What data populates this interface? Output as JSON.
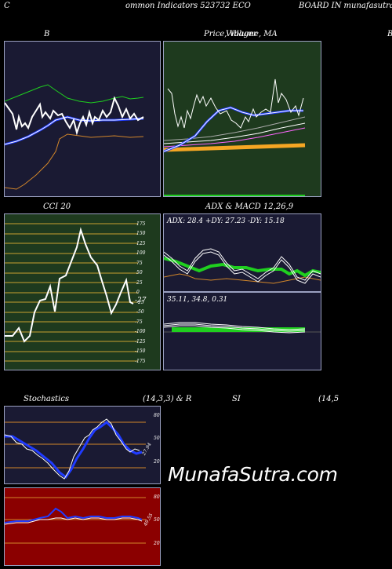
{
  "header": {
    "left": "C",
    "center": "ommon  Indicators 523732  ECO",
    "right": "BOARD IN  munafasutra.in"
  },
  "panels": {
    "bollinger": {
      "title": "B",
      "bg": "#1a1a33"
    },
    "price": {
      "title": "Price,  Volume,  MA",
      "overlay_title": "Villager",
      "right_letter": "B",
      "bg": "#1e3a1e"
    },
    "cci": {
      "title": "CCI 20",
      "bg": "#1e3a1e",
      "value_label": "-27",
      "ticks": [
        "175",
        "150",
        "125",
        "100",
        "75",
        "50",
        "25",
        "0",
        "-25",
        "-50",
        "-75",
        "-100",
        "-125",
        "-150",
        "-175"
      ]
    },
    "adx": {
      "title": "ADX  & MACD 12,26,9",
      "adx_label": "ADX: 28.4   +DY: 27.23 -DY: 15.18",
      "macd_label": "35.11,  34.8,  0.31",
      "bg": "#1a1a33"
    },
    "stochastics": {
      "title_left": "Stochastics",
      "title_mid": "(14,3,3) & R",
      "title_rsi": "SI",
      "title_right": "(14,5",
      "bg": "#1a1a33",
      "value_label": "27.94",
      "ticks": [
        "80",
        "50",
        "20"
      ]
    },
    "rsi": {
      "bg": "#8b0000",
      "value_label": "49.55",
      "ticks": [
        "80",
        "50",
        "20"
      ]
    }
  },
  "watermark": "MunafaSutra.com",
  "colors": {
    "grid_orange": "#d2862a",
    "blue_line": "#1f3bff",
    "white_line": "#ffffff",
    "green_line": "#1fcf1f"
  }
}
